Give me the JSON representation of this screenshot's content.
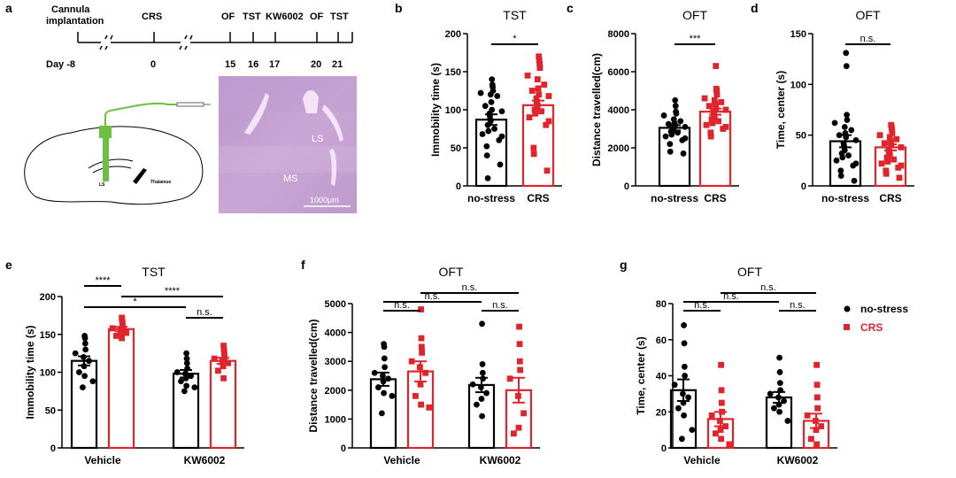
{
  "colors": {
    "nostress": "#000000",
    "crs": "#e0242b",
    "tissue": "#c9a3d3",
    "probe": "#6fbe44",
    "cutout": "#f4e3f7"
  },
  "timeline": {
    "letter": "a",
    "events": [
      "Cannula",
      "implantation",
      "CRS",
      "OF",
      "TST",
      "KW6002",
      "OF",
      "TST"
    ],
    "day_label": "Day -8",
    "days": [
      "0",
      "15",
      "16",
      "17",
      "20",
      "21"
    ]
  },
  "histology": {
    "labels": [
      "LS",
      "MS",
      "Thalamus",
      "LS"
    ],
    "scale_bar": "1000μm"
  },
  "legend": {
    "items": [
      "no-stress",
      "CRS"
    ]
  },
  "chart_data": [
    {
      "panel": "b",
      "type": "bar",
      "title": "TST",
      "ylabel": "Immobility time (s)",
      "ylim": [
        0,
        200
      ],
      "yticks": [
        0,
        50,
        100,
        150,
        200
      ],
      "categories": [
        "no-stress",
        "CRS"
      ],
      "values": [
        87,
        106
      ],
      "errors": [
        7,
        6
      ],
      "points": [
        [
          140,
          133,
          130,
          125,
          122,
          120,
          118,
          110,
          105,
          100,
          98,
          95,
          92,
          88,
          85,
          80,
          75,
          72,
          68,
          65,
          60,
          52,
          40,
          28,
          10
        ],
        [
          170,
          165,
          160,
          155,
          145,
          140,
          133,
          128,
          125,
          120,
          118,
          115,
          110,
          108,
          105,
          100,
          98,
          95,
          90,
          85,
          80,
          50,
          42,
          20
        ]
      ],
      "comparisons": [
        {
          "from": 0,
          "to": 1,
          "label": "*"
        }
      ]
    },
    {
      "panel": "c",
      "type": "bar",
      "title": "OFT",
      "ylabel": "Distance travelled(cm)",
      "ylim": [
        0,
        8000
      ],
      "yticks": [
        0,
        2000,
        4000,
        6000,
        8000
      ],
      "categories": [
        "no-stress",
        "CRS"
      ],
      "values": [
        3050,
        3900
      ],
      "errors": [
        140,
        160
      ],
      "points": [
        [
          4500,
          4200,
          3900,
          3800,
          3700,
          3500,
          3400,
          3300,
          3250,
          3200,
          3100,
          3050,
          3000,
          2950,
          2900,
          2850,
          2800,
          2700,
          2600,
          2500,
          2400,
          2200,
          1800,
          1700
        ],
        [
          6300,
          5100,
          5000,
          4800,
          4600,
          4500,
          4400,
          4300,
          4200,
          4100,
          4000,
          3900,
          3800,
          3700,
          3600,
          3500,
          3400,
          3300,
          3200,
          3100,
          3000,
          2800,
          2600
        ]
      ],
      "comparisons": [
        {
          "from": 0,
          "to": 1,
          "label": "***"
        }
      ]
    },
    {
      "panel": "d",
      "type": "bar",
      "title": "OFT",
      "ylabel": "Time, center (s)",
      "ylim": [
        0,
        150
      ],
      "yticks": [
        0,
        50,
        100,
        150
      ],
      "categories": [
        "no-stress",
        "CRS"
      ],
      "values": [
        44,
        38
      ],
      "errors": [
        6,
        3
      ],
      "points": [
        [
          131,
          118,
          70,
          65,
          62,
          58,
          55,
          52,
          50,
          48,
          45,
          42,
          40,
          38,
          35,
          32,
          30,
          28,
          25,
          22,
          20,
          15,
          10,
          5
        ],
        [
          60,
          58,
          55,
          52,
          50,
          48,
          46,
          44,
          42,
          40,
          38,
          36,
          34,
          32,
          30,
          28,
          26,
          24,
          22,
          20,
          18,
          15,
          12,
          8
        ]
      ],
      "comparisons": [
        {
          "from": 0,
          "to": 1,
          "label": "n.s."
        }
      ]
    },
    {
      "panel": "e",
      "type": "bar",
      "title": "TST",
      "ylabel": "Immobility time (s)",
      "ylim": [
        0,
        200
      ],
      "yticks": [
        0,
        50,
        100,
        150,
        200
      ],
      "categories": [
        "Vehicle",
        "KW6002"
      ],
      "series": [
        {
          "name": "no-stress",
          "values": [
            115,
            98
          ],
          "errors": [
            6,
            5
          ],
          "points": [
            [
              148,
              145,
              138,
              130,
              125,
              120,
              115,
              108,
              100,
              95,
              88,
              80
            ],
            [
              125,
              118,
              112,
              105,
              100,
              98,
              95,
              92,
              88,
              82,
              80,
              75
            ]
          ]
        },
        {
          "name": "CRS",
          "values": [
            157,
            115
          ],
          "errors": [
            3,
            4
          ],
          "points": [
            [
              172,
              168,
              165,
              160,
              158,
              155,
              152,
              150,
              148,
              145
            ],
            [
              135,
              130,
              125,
              120,
              118,
              115,
              112,
              108,
              102,
              92
            ]
          ]
        }
      ],
      "comparisons": [
        {
          "from": [
            0,
            0
          ],
          "to": [
            0,
            1
          ],
          "label": "****",
          "level": 0
        },
        {
          "from": [
            0,
            1
          ],
          "to": [
            1,
            1
          ],
          "label": "****",
          "level": 1
        },
        {
          "from": [
            0,
            0
          ],
          "to": [
            1,
            0
          ],
          "label": "*",
          "level": 2
        },
        {
          "from": [
            1,
            0
          ],
          "to": [
            1,
            1
          ],
          "label": "n.s.",
          "level": 3
        }
      ]
    },
    {
      "panel": "f",
      "type": "bar",
      "title": "OFT",
      "ylabel": "Distance travelled(cm)",
      "ylim": [
        0,
        5000
      ],
      "yticks": [
        0,
        1000,
        2000,
        3000,
        4000,
        5000
      ],
      "categories": [
        "Vehicle",
        "KW6002"
      ],
      "series": [
        {
          "name": "no-stress",
          "values": [
            2380,
            2180
          ],
          "errors": [
            230,
            250
          ],
          "points": [
            [
              3600,
              3500,
              3100,
              2800,
              2600,
              2500,
              2400,
              2300,
              2100,
              1900,
              1800,
              1200
            ],
            [
              4300,
              2900,
              2600,
              2400,
              2200,
              2100,
              1900,
              1700,
              1500,
              1100
            ]
          ]
        },
        {
          "name": "CRS",
          "values": [
            2650,
            2000
          ],
          "errors": [
            350,
            430
          ],
          "points": [
            [
              4800,
              3800,
              3500,
              3300,
              3000,
              2800,
              2600,
              2200,
              1800,
              1500,
              1400
            ],
            [
              4200,
              3600,
              3000,
              2700,
              2400,
              1800,
              1200,
              700,
              500
            ]
          ]
        }
      ],
      "comparisons": [
        {
          "from": [
            0,
            1
          ],
          "to": [
            1,
            1
          ],
          "label": "n.s.",
          "level": 0
        },
        {
          "from": [
            0,
            0
          ],
          "to": [
            1,
            0
          ],
          "label": "n.s.",
          "level": 1
        },
        {
          "from": [
            0,
            0
          ],
          "to": [
            0,
            1
          ],
          "label": "n.s.",
          "level": 2
        },
        {
          "from": [
            1,
            0
          ],
          "to": [
            1,
            1
          ],
          "label": "n.s.",
          "level": 2
        }
      ]
    },
    {
      "panel": "g",
      "type": "bar",
      "title": "OFT",
      "ylabel": "Time, center (s)",
      "ylim": [
        0,
        80
      ],
      "yticks": [
        0,
        20,
        40,
        60,
        80
      ],
      "categories": [
        "Vehicle",
        "KW6002"
      ],
      "series": [
        {
          "name": "no-stress",
          "values": [
            32,
            28
          ],
          "errors": [
            6,
            3
          ],
          "points": [
            [
              68,
              58,
              45,
              40,
              35,
              30,
              28,
              25,
              22,
              18,
              10,
              5
            ],
            [
              50,
              42,
              36,
              32,
              30,
              28,
              26,
              24,
              22,
              20,
              15
            ]
          ]
        },
        {
          "name": "CRS",
          "values": [
            16,
            15
          ],
          "errors": [
            4,
            4
          ],
          "points": [
            [
              46,
              32,
              25,
              20,
              18,
              15,
              12,
              10,
              8,
              5,
              2
            ],
            [
              46,
              35,
              28,
              22,
              18,
              15,
              12,
              10,
              5,
              2
            ]
          ]
        }
      ],
      "comparisons": [
        {
          "from": [
            0,
            1
          ],
          "to": [
            1,
            1
          ],
          "label": "n.s.",
          "level": 0
        },
        {
          "from": [
            0,
            0
          ],
          "to": [
            1,
            0
          ],
          "label": "n.s.",
          "level": 1
        },
        {
          "from": [
            0,
            0
          ],
          "to": [
            0,
            1
          ],
          "label": "n.s.",
          "level": 2
        },
        {
          "from": [
            1,
            0
          ],
          "to": [
            1,
            1
          ],
          "label": "n.s.",
          "level": 2
        }
      ]
    }
  ]
}
